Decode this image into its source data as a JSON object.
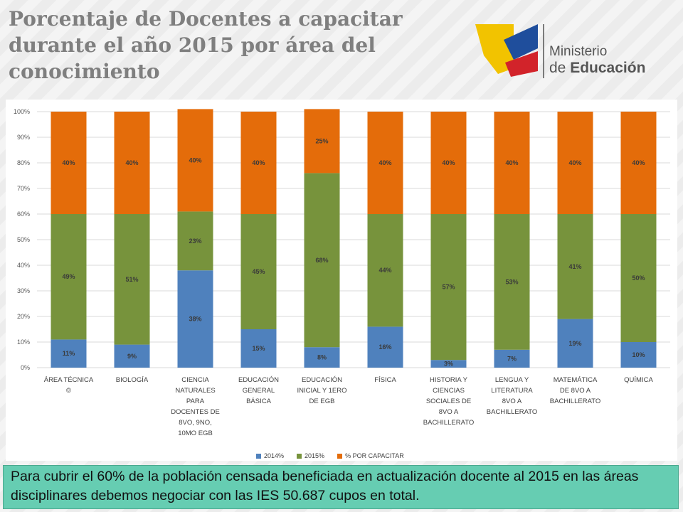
{
  "title": "Porcentaje de Docentes a capacitar durante el año 2015 por área del conocimiento",
  "logo": {
    "line1": "Ministerio",
    "line2_prefix": "de ",
    "line2_bold": "Educación",
    "colors": {
      "yellow": "#f2c300",
      "blue": "#1f4e9c",
      "red": "#d2232a",
      "grey": "#555555"
    }
  },
  "note": "Para cubrir el 60% de la población censada beneficiada en actualización docente al 2015 en las áreas disciplinares debemos negociar con las IES 50.687 cupos en total.",
  "chart_data": {
    "type": "bar",
    "stacked": true,
    "title": "",
    "xlabel": "",
    "ylabel": "",
    "ylim": [
      0,
      100
    ],
    "yticks": [
      0,
      10,
      20,
      30,
      40,
      50,
      60,
      70,
      80,
      90,
      100
    ],
    "yticklabels": [
      "0%",
      "10%",
      "20%",
      "30%",
      "40%",
      "50%",
      "60%",
      "70%",
      "80%",
      "90%",
      "100%"
    ],
    "grid": true,
    "legend_position": "bottom",
    "categories": [
      [
        "ÁREA TÉCNICA",
        "©"
      ],
      [
        "BIOLOGÍA"
      ],
      [
        "CIENCIA",
        "NATURALES",
        "PARA",
        "DOCENTES DE",
        "8VO, 9NO,",
        "10MO EGB"
      ],
      [
        "EDUCACIÓN",
        "GENERAL",
        "BÁSICA"
      ],
      [
        "EDUCACIÓN",
        "INICIAL Y 1ERO",
        "DE EGB"
      ],
      [
        "FÍSICA"
      ],
      [
        "HISTORIA Y",
        "CIENCIAS",
        "SOCIALES DE",
        "8VO A",
        "BACHILLERATO"
      ],
      [
        "LENGUA Y",
        "LITERATURA",
        "8VO A",
        "BACHILLERATO"
      ],
      [
        "MATEMÁTICA",
        "DE 8VO A",
        "BACHILLERATO"
      ],
      [
        "QUÍMICA"
      ]
    ],
    "series": [
      {
        "name": "2014%",
        "color": "#4f81bd",
        "values": [
          11,
          9,
          38,
          15,
          8,
          16,
          3,
          7,
          19,
          10
        ],
        "labels": [
          "11%",
          "9%",
          "38%",
          "15%",
          "8%",
          "16%",
          "3%",
          "7%",
          "19%",
          "10%"
        ]
      },
      {
        "name": "2015%",
        "color": "#77933c",
        "values": [
          49,
          51,
          23,
          45,
          68,
          44,
          57,
          53,
          41,
          50
        ],
        "labels": [
          "49%",
          "51%",
          "23%",
          "45%",
          "68%",
          "44%",
          "57%",
          "53%",
          "41%",
          "50%"
        ]
      },
      {
        "name": "% POR CAPACITAR",
        "color": "#e46c0a",
        "values": [
          40,
          40,
          40,
          40,
          25,
          40,
          40,
          40,
          40,
          40
        ],
        "labels": [
          "40%",
          "40%",
          "40%",
          "40%",
          "25%",
          "40%",
          "40%",
          "40%",
          "40%",
          "40%"
        ]
      }
    ]
  }
}
